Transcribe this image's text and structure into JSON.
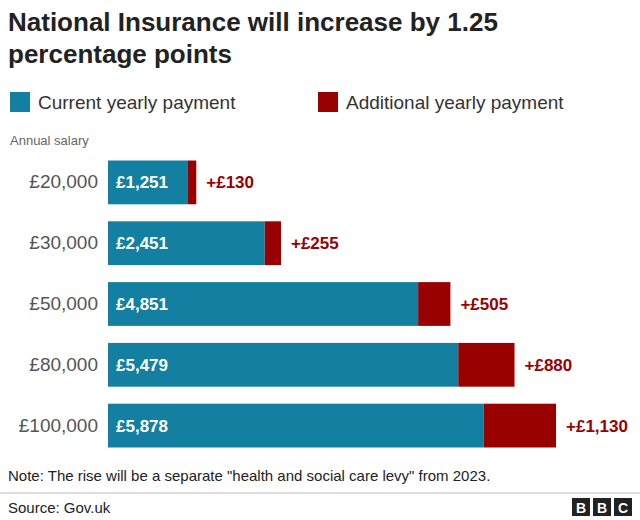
{
  "chart_data": {
    "type": "bar",
    "title": "National Insurance will increase by 1.25 percentage points",
    "y_label": "Annual salary",
    "categories": [
      "£20,000",
      "£30,000",
      "£50,000",
      "£80,000",
      "£100,000"
    ],
    "series": [
      {
        "name": "Current yearly payment",
        "color": "#1380a1",
        "values": [
          1251,
          2451,
          4851,
          5479,
          5878
        ],
        "value_labels": [
          "£1,251",
          "£2,451",
          "£4,851",
          "£5,479",
          "£5,878"
        ]
      },
      {
        "name": "Additional yearly payment",
        "color": "#990000",
        "values": [
          130,
          255,
          505,
          880,
          1130
        ],
        "value_labels": [
          "+£130",
          "+£255",
          "+£505",
          "+£880",
          "+£1,130"
        ]
      }
    ],
    "orientation": "horizontal",
    "stacked": true,
    "data_labels": true,
    "tick_labels": "y",
    "legend": "top",
    "note": "Note: The rise will be a separate \"health and social care levy\" from 2023.",
    "source": "Source: Gov.uk",
    "logo": "BBC"
  }
}
